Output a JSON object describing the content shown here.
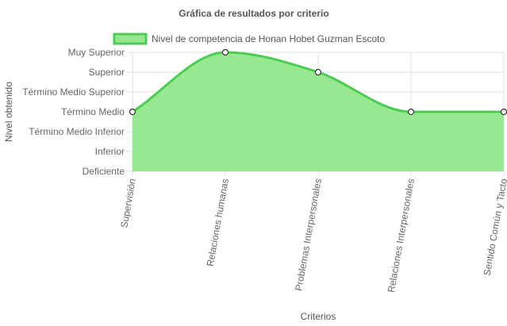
{
  "chart_data": {
    "type": "area",
    "title": "Gráfica de resultados por criterio",
    "xlabel": "Criterios",
    "ylabel": "Nivel obtenido",
    "categories": [
      "Supervisión",
      "Relaciones humanas",
      "Problemas Interpersonales",
      "Relaciones Interpersonales",
      "Sentido Común y Tacto"
    ],
    "y_levels": [
      "Deficiente",
      "Inferior",
      "Término Medio Inferior",
      "Término Medio",
      "Término Medio Superior",
      "Superior",
      "Muy Superior"
    ],
    "series": [
      {
        "name": "Nivel de competencia de Honan Hobet Guzman Escoto",
        "values": [
          3,
          6,
          5,
          3,
          3
        ]
      }
    ],
    "ylim": [
      0,
      6
    ],
    "grid": true,
    "legend_position": "top",
    "colors": {
      "fill": "#98e892",
      "line": "#4ccc52",
      "point_fill": "#ffffff",
      "point_stroke": "#333333",
      "grid": "#e0e0e0"
    }
  }
}
